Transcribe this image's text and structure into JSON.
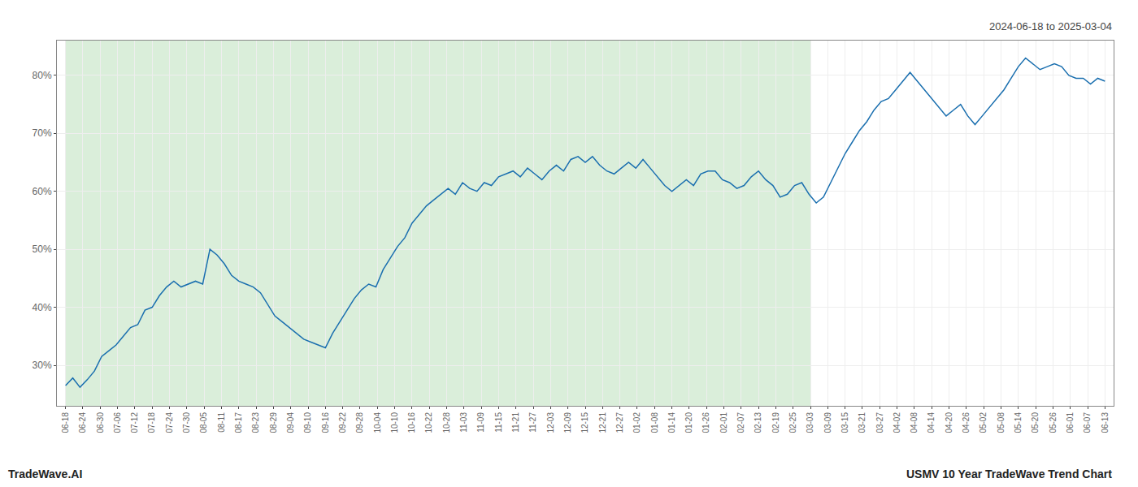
{
  "chart_data": {
    "type": "line",
    "title": "USMV 10 Year TradeWave Trend Chart",
    "subtitle": "2024-06-18 to 2025-03-04",
    "annotations": [
      "TradeWave.AI"
    ],
    "color": "#1a6faf",
    "grid": true,
    "shaded_region": {
      "start": 0,
      "end": 43,
      "color": "#daeeda"
    },
    "xlim": [
      -0.5,
      60.5
    ],
    "xticks": [
      {
        "value": 0,
        "label": "06-18"
      },
      {
        "value": 1,
        "label": "06-24"
      },
      {
        "value": 2,
        "label": "06-30"
      },
      {
        "value": 3,
        "label": "07-06"
      },
      {
        "value": 4,
        "label": "07-12"
      },
      {
        "value": 5,
        "label": "07-18"
      },
      {
        "value": 6,
        "label": "07-24"
      },
      {
        "value": 7,
        "label": "07-30"
      },
      {
        "value": 8,
        "label": "08-05"
      },
      {
        "value": 9,
        "label": "08-11"
      },
      {
        "value": 10,
        "label": "08-17"
      },
      {
        "value": 11,
        "label": "08-23"
      },
      {
        "value": 12,
        "label": "08-29"
      },
      {
        "value": 13,
        "label": "09-04"
      },
      {
        "value": 14,
        "label": "09-10"
      },
      {
        "value": 15,
        "label": "09-16"
      },
      {
        "value": 16,
        "label": "09-22"
      },
      {
        "value": 17,
        "label": "09-28"
      },
      {
        "value": 18,
        "label": "10-04"
      },
      {
        "value": 19,
        "label": "10-10"
      },
      {
        "value": 20,
        "label": "10-16"
      },
      {
        "value": 21,
        "label": "10-22"
      },
      {
        "value": 22,
        "label": "10-28"
      },
      {
        "value": 23,
        "label": "11-03"
      },
      {
        "value": 24,
        "label": "11-09"
      },
      {
        "value": 25,
        "label": "11-15"
      },
      {
        "value": 26,
        "label": "11-21"
      },
      {
        "value": 27,
        "label": "11-27"
      },
      {
        "value": 28,
        "label": "12-03"
      },
      {
        "value": 29,
        "label": "12-09"
      },
      {
        "value": 30,
        "label": "12-15"
      },
      {
        "value": 31,
        "label": "12-21"
      },
      {
        "value": 32,
        "label": "12-27"
      },
      {
        "value": 33,
        "label": "01-02"
      },
      {
        "value": 34,
        "label": "01-08"
      },
      {
        "value": 35,
        "label": "01-14"
      },
      {
        "value": 36,
        "label": "01-20"
      },
      {
        "value": 37,
        "label": "01-26"
      },
      {
        "value": 38,
        "label": "02-01"
      },
      {
        "value": 39,
        "label": "02-07"
      },
      {
        "value": 40,
        "label": "02-13"
      },
      {
        "value": 41,
        "label": "02-19"
      },
      {
        "value": 42,
        "label": "02-25"
      },
      {
        "value": 43,
        "label": "03-03"
      },
      {
        "value": 44,
        "label": "03-09"
      },
      {
        "value": 45,
        "label": "03-15"
      },
      {
        "value": 46,
        "label": "03-21"
      },
      {
        "value": 47,
        "label": "03-27"
      },
      {
        "value": 48,
        "label": "04-02"
      },
      {
        "value": 49,
        "label": "04-08"
      },
      {
        "value": 50,
        "label": "04-14"
      },
      {
        "value": 51,
        "label": "04-20"
      },
      {
        "value": 52,
        "label": "04-26"
      },
      {
        "value": 53,
        "label": "05-02"
      },
      {
        "value": 54,
        "label": "05-08"
      },
      {
        "value": 55,
        "label": "05-14"
      },
      {
        "value": 56,
        "label": "05-20"
      },
      {
        "value": 57,
        "label": "05-26"
      },
      {
        "value": 58,
        "label": "06-01"
      },
      {
        "value": 59,
        "label": "06-07"
      },
      {
        "value": 60,
        "label": "06-13"
      }
    ],
    "ylim": [
      23,
      86
    ],
    "yticks": [
      {
        "value": 30,
        "label": "30%"
      },
      {
        "value": 40,
        "label": "40%"
      },
      {
        "value": 50,
        "label": "50%"
      },
      {
        "value": 60,
        "label": "60%"
      },
      {
        "value": 70,
        "label": "70%"
      },
      {
        "value": 80,
        "label": "80%"
      }
    ],
    "x": [
      0,
      0.4167,
      0.8333,
      1.25,
      1.6667,
      2.0833,
      2.5,
      2.9167,
      3.3333,
      3.75,
      4.1667,
      4.5833,
      5,
      5.4167,
      5.8333,
      6.25,
      6.6667,
      7.0833,
      7.5,
      7.9167,
      8.3333,
      8.75,
      9.1667,
      9.5833,
      10,
      10.4167,
      10.8333,
      11.25,
      11.6667,
      12.0833,
      12.5,
      12.9167,
      13.3333,
      13.75,
      14.1667,
      14.5833,
      15,
      15.4167,
      15.8333,
      16.25,
      16.6667,
      17.0833,
      17.5,
      17.9167,
      18.3333,
      18.75,
      19.1667,
      19.5833,
      20,
      20.4167,
      20.8333,
      21.25,
      21.6667,
      22.0833,
      22.5,
      22.9167,
      23.3333,
      23.75,
      24.1667,
      24.5833,
      25,
      25.4167,
      25.8333,
      26.25,
      26.6667,
      27.0833,
      27.5,
      27.9167,
      28.3333,
      28.75,
      29.1667,
      29.5833,
      30,
      30.4167,
      30.8333,
      31.25,
      31.6667,
      32.0833,
      32.5,
      32.9167,
      33.3333,
      33.75,
      34.1667,
      34.5833,
      35,
      35.4167,
      35.8333,
      36.25,
      36.6667,
      37.0833,
      37.5,
      37.9167,
      38.3333,
      38.75,
      39.1667,
      39.5833,
      40,
      40.4167,
      40.8333,
      41.25,
      41.6667,
      42.0833,
      42.5,
      42.9167,
      43.3333,
      43.75,
      44.1667,
      44.5833,
      45,
      45.4167,
      45.8333,
      46.25,
      46.6667,
      47.0833,
      47.5,
      47.9167,
      48.3333,
      48.75,
      49.1667,
      49.5833,
      50,
      50.4167,
      50.8333,
      51.25,
      51.6667,
      52.0833,
      52.5,
      52.9167,
      53.3333,
      53.75,
      54.1667,
      54.5833,
      55,
      55.4167,
      55.8333,
      56.25,
      56.6667,
      57.0833,
      57.5,
      57.9167,
      58.3333,
      58.75,
      59.1667,
      59.5833,
      60
    ],
    "values": [
      26.5,
      27.8,
      26.2,
      27.5,
      29.0,
      31.5,
      32.5,
      33.5,
      35.0,
      36.5,
      37.0,
      39.5,
      40.0,
      42.0,
      43.5,
      44.5,
      43.5,
      44.0,
      44.5,
      44.0,
      50.0,
      49.0,
      47.5,
      45.5,
      44.5,
      44.0,
      43.5,
      42.5,
      40.5,
      38.5,
      37.5,
      36.5,
      35.5,
      34.5,
      34.0,
      33.5,
      33.0,
      35.5,
      37.5,
      39.5,
      41.5,
      43.0,
      44.0,
      43.5,
      46.5,
      48.5,
      50.5,
      52.0,
      54.5,
      56.0,
      57.5,
      58.5,
      59.5,
      60.5,
      59.5,
      61.5,
      60.5,
      60.0,
      61.5,
      61.0,
      62.5,
      63.0,
      63.5,
      62.5,
      64.0,
      63.0,
      62.0,
      63.5,
      64.5,
      63.5,
      65.5,
      66.0,
      65.0,
      66.0,
      64.5,
      63.5,
      63.0,
      64.0,
      65.0,
      64.0,
      65.5,
      64.0,
      62.5,
      61.0,
      60.0,
      61.0,
      62.0,
      61.0,
      63.0,
      63.5,
      63.5,
      62.0,
      61.5,
      60.5,
      61.0,
      62.5,
      63.5,
      62.0,
      61.0,
      59.0,
      59.5,
      61.0,
      61.5,
      59.5,
      58.0,
      59.0,
      61.5,
      64.0,
      66.5,
      68.5,
      70.5,
      72.0,
      74.0,
      75.5,
      76.0,
      77.5,
      79.0,
      80.5,
      79.0,
      77.5,
      76.0,
      74.5,
      73.0,
      74.0,
      75.0,
      73.0,
      71.5,
      73.0,
      74.5,
      76.0,
      77.5,
      79.5,
      81.5,
      83.0,
      82.0,
      81.0,
      81.5,
      82.0,
      81.5,
      80.0,
      79.5,
      79.5,
      78.5,
      79.5,
      79.0
    ]
  }
}
